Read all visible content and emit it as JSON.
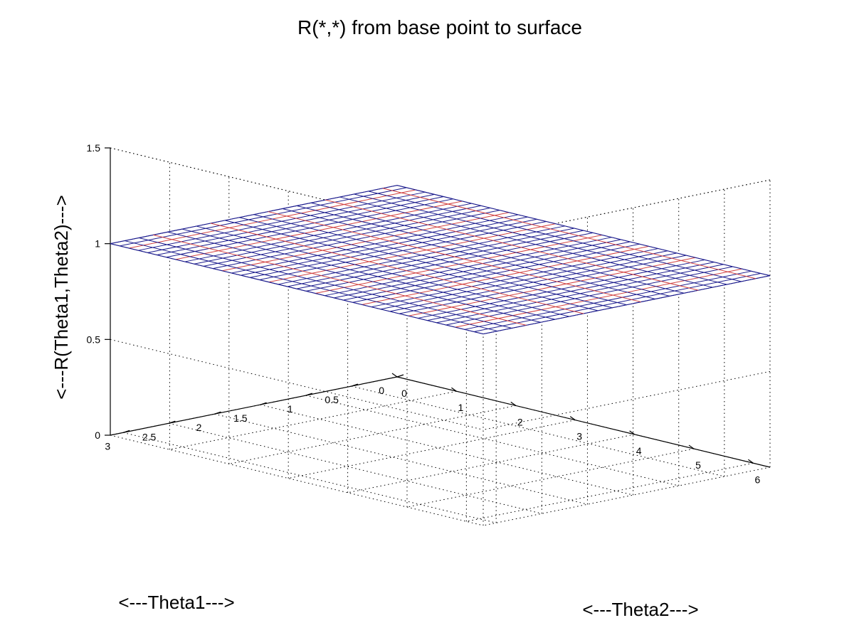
{
  "chart_data": {
    "type": "surface",
    "title": "R(*,*) from base point to surface",
    "xlabel": "<---Theta2--->",
    "ylabel": "<---Theta1--->",
    "zlabel": "<---R(Theta1,Theta2)--->",
    "xlim": [
      0,
      6.2832
    ],
    "ylim": [
      0,
      3.1416
    ],
    "zlim": [
      0,
      1.5
    ],
    "x_ticks": [
      "0",
      "1",
      "2",
      "3",
      "4",
      "5",
      "6"
    ],
    "x_tick_values": [
      0,
      1,
      2,
      3,
      4,
      5,
      6
    ],
    "y_ticks": [
      "0",
      "0.5",
      "1",
      "1.5",
      "2",
      "2.5",
      "3"
    ],
    "y_tick_values": [
      0,
      0.5,
      1,
      1.5,
      2,
      2.5,
      3
    ],
    "z_ticks": [
      "0",
      "0.5",
      "1",
      "1.5"
    ],
    "z_tick_values": [
      0,
      0.5,
      1,
      1.5
    ],
    "surface": {
      "value": 1.0,
      "x_divisions": 40,
      "y_divisions": 20
    },
    "grid": true,
    "colors": {
      "mesh_primary": "#1a1a8c",
      "mesh_secondary": "#d04040",
      "surface_fill": "#ffffff"
    }
  }
}
